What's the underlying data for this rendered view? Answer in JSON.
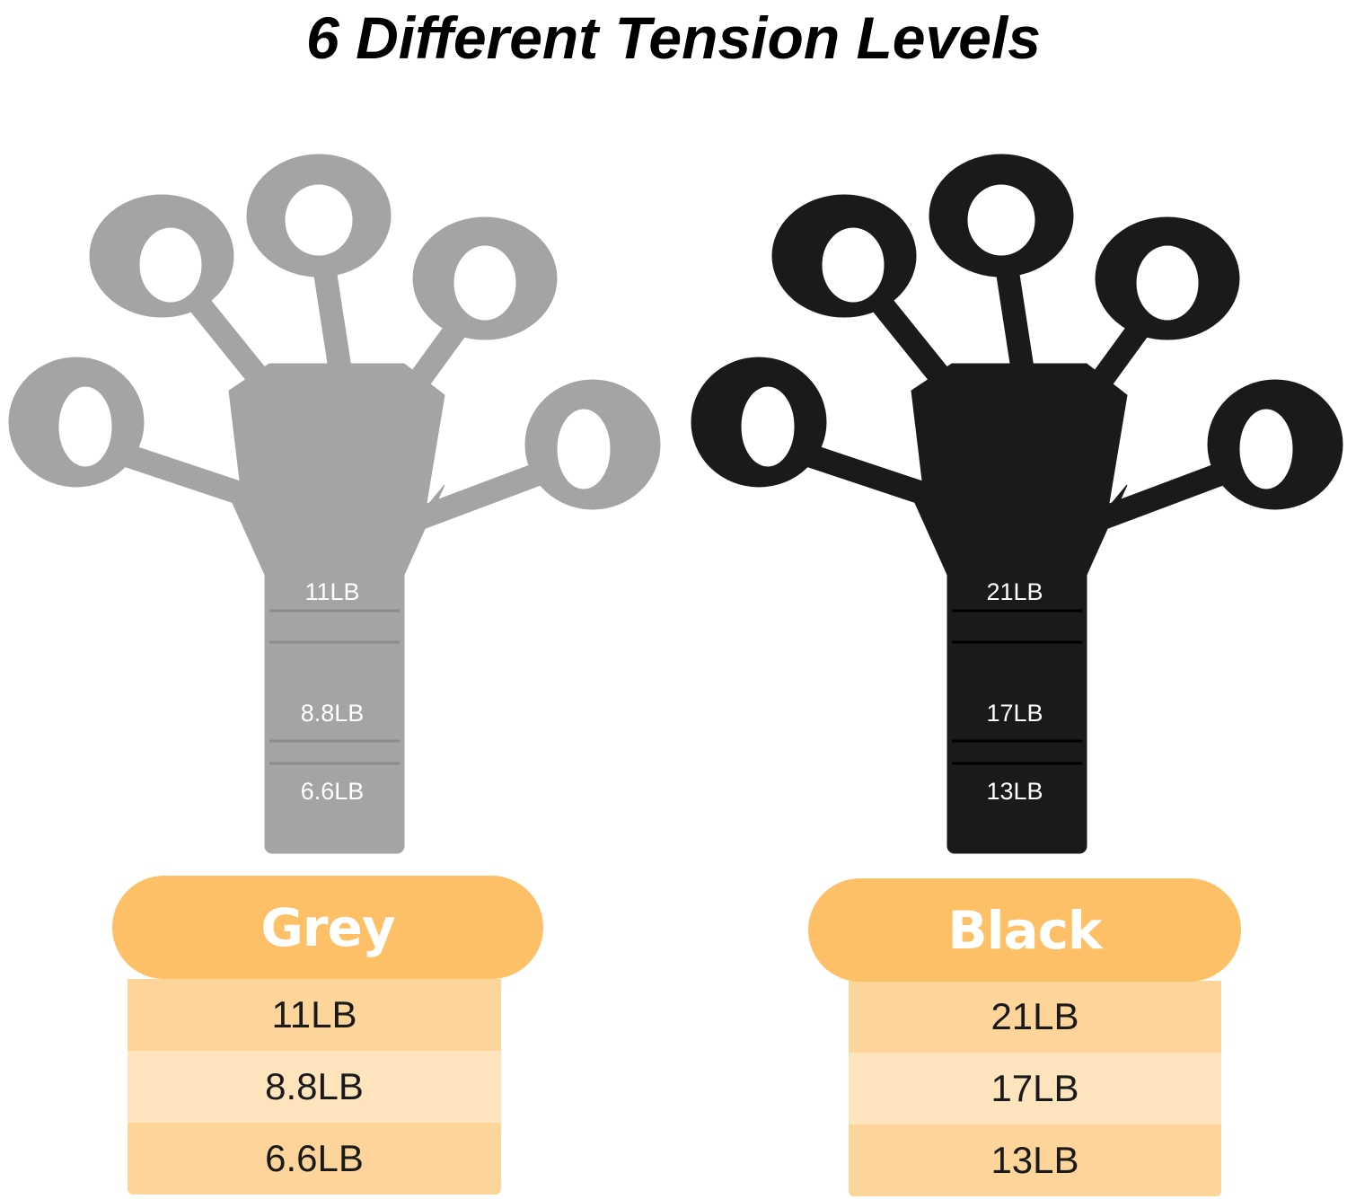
{
  "title": "6 Different Tension Levels",
  "colors": {
    "accent": "#fdc066",
    "row_dark": "#fdd59a",
    "row_light": "#fee4bd",
    "grey_product": "#a4a4a4",
    "black_product": "#1a1a1a"
  },
  "products": [
    {
      "name": "Grey",
      "color": "#a4a4a4",
      "band_labels": [
        "11LB",
        "8.8LB",
        "6.6LB"
      ],
      "levels": [
        "11LB",
        "8.8LB",
        "6.6LB"
      ]
    },
    {
      "name": "Black",
      "color": "#1a1a1a",
      "band_labels": [
        "21LB",
        "17LB",
        "13LB"
      ],
      "levels": [
        "21LB",
        "17LB",
        "13LB"
      ]
    }
  ]
}
